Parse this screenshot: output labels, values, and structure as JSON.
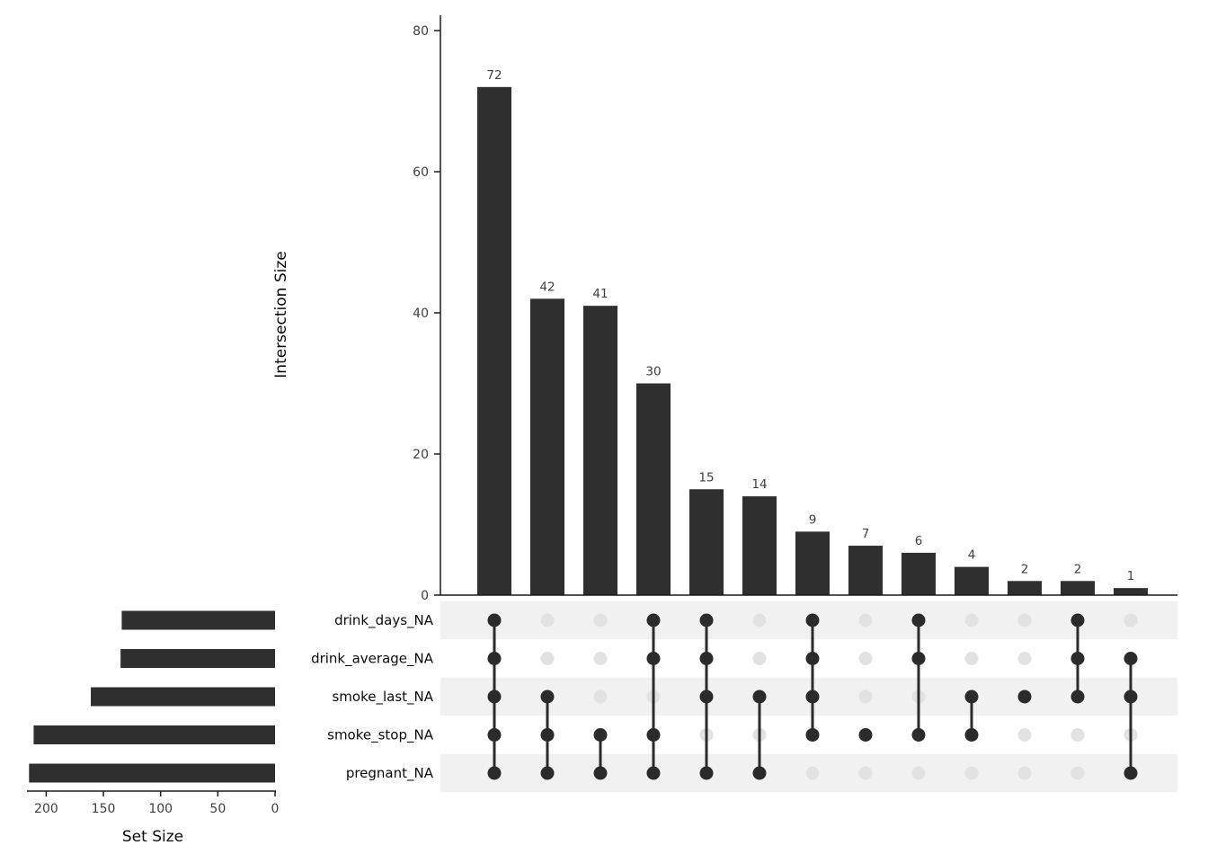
{
  "chart_data": {
    "type": "upset",
    "title": "",
    "intersection_axis": {
      "label": "Intersection Size",
      "ticks": [
        0,
        20,
        40,
        60,
        80
      ],
      "range": [
        0,
        82
      ]
    },
    "set_axis": {
      "label": "Set Size",
      "ticks": [
        200,
        150,
        100,
        50,
        0
      ],
      "range": [
        0,
        216
      ]
    },
    "sets": [
      {
        "name": "drink_days_NA",
        "size": 134
      },
      {
        "name": "drink_average_NA",
        "size": 135
      },
      {
        "name": "smoke_last_NA",
        "size": 161
      },
      {
        "name": "smoke_stop_NA",
        "size": 211
      },
      {
        "name": "pregnant_NA",
        "size": 215
      }
    ],
    "intersections": [
      {
        "size": 72,
        "sets": [
          "drink_days_NA",
          "drink_average_NA",
          "smoke_last_NA",
          "smoke_stop_NA",
          "pregnant_NA"
        ]
      },
      {
        "size": 42,
        "sets": [
          "smoke_last_NA",
          "smoke_stop_NA",
          "pregnant_NA"
        ]
      },
      {
        "size": 41,
        "sets": [
          "smoke_stop_NA",
          "pregnant_NA"
        ]
      },
      {
        "size": 30,
        "sets": [
          "drink_days_NA",
          "drink_average_NA",
          "smoke_stop_NA",
          "pregnant_NA"
        ]
      },
      {
        "size": 15,
        "sets": [
          "drink_days_NA",
          "drink_average_NA",
          "smoke_last_NA",
          "pregnant_NA"
        ]
      },
      {
        "size": 14,
        "sets": [
          "smoke_last_NA",
          "pregnant_NA"
        ]
      },
      {
        "size": 9,
        "sets": [
          "drink_days_NA",
          "drink_average_NA",
          "smoke_last_NA",
          "smoke_stop_NA"
        ]
      },
      {
        "size": 7,
        "sets": [
          "smoke_stop_NA"
        ]
      },
      {
        "size": 6,
        "sets": [
          "drink_days_NA",
          "drink_average_NA",
          "smoke_stop_NA"
        ]
      },
      {
        "size": 4,
        "sets": [
          "smoke_last_NA",
          "smoke_stop_NA"
        ]
      },
      {
        "size": 2,
        "sets": [
          "smoke_last_NA"
        ]
      },
      {
        "size": 2,
        "sets": [
          "drink_days_NA",
          "drink_average_NA",
          "smoke_last_NA"
        ]
      },
      {
        "size": 1,
        "sets": [
          "drink_average_NA",
          "smoke_last_NA",
          "pregnant_NA"
        ]
      }
    ],
    "legend_position": "none",
    "grid": "off",
    "colors": {
      "bar": "#2f2f2f",
      "dot_active": "#2b2b2b",
      "dot_inactive": "#e2e2e2",
      "stripe": "#f1f1f1",
      "axis": "#1c1c1c",
      "label": "#3f3f3f",
      "text": "#0a0a0a",
      "background": "#ffffff"
    }
  }
}
